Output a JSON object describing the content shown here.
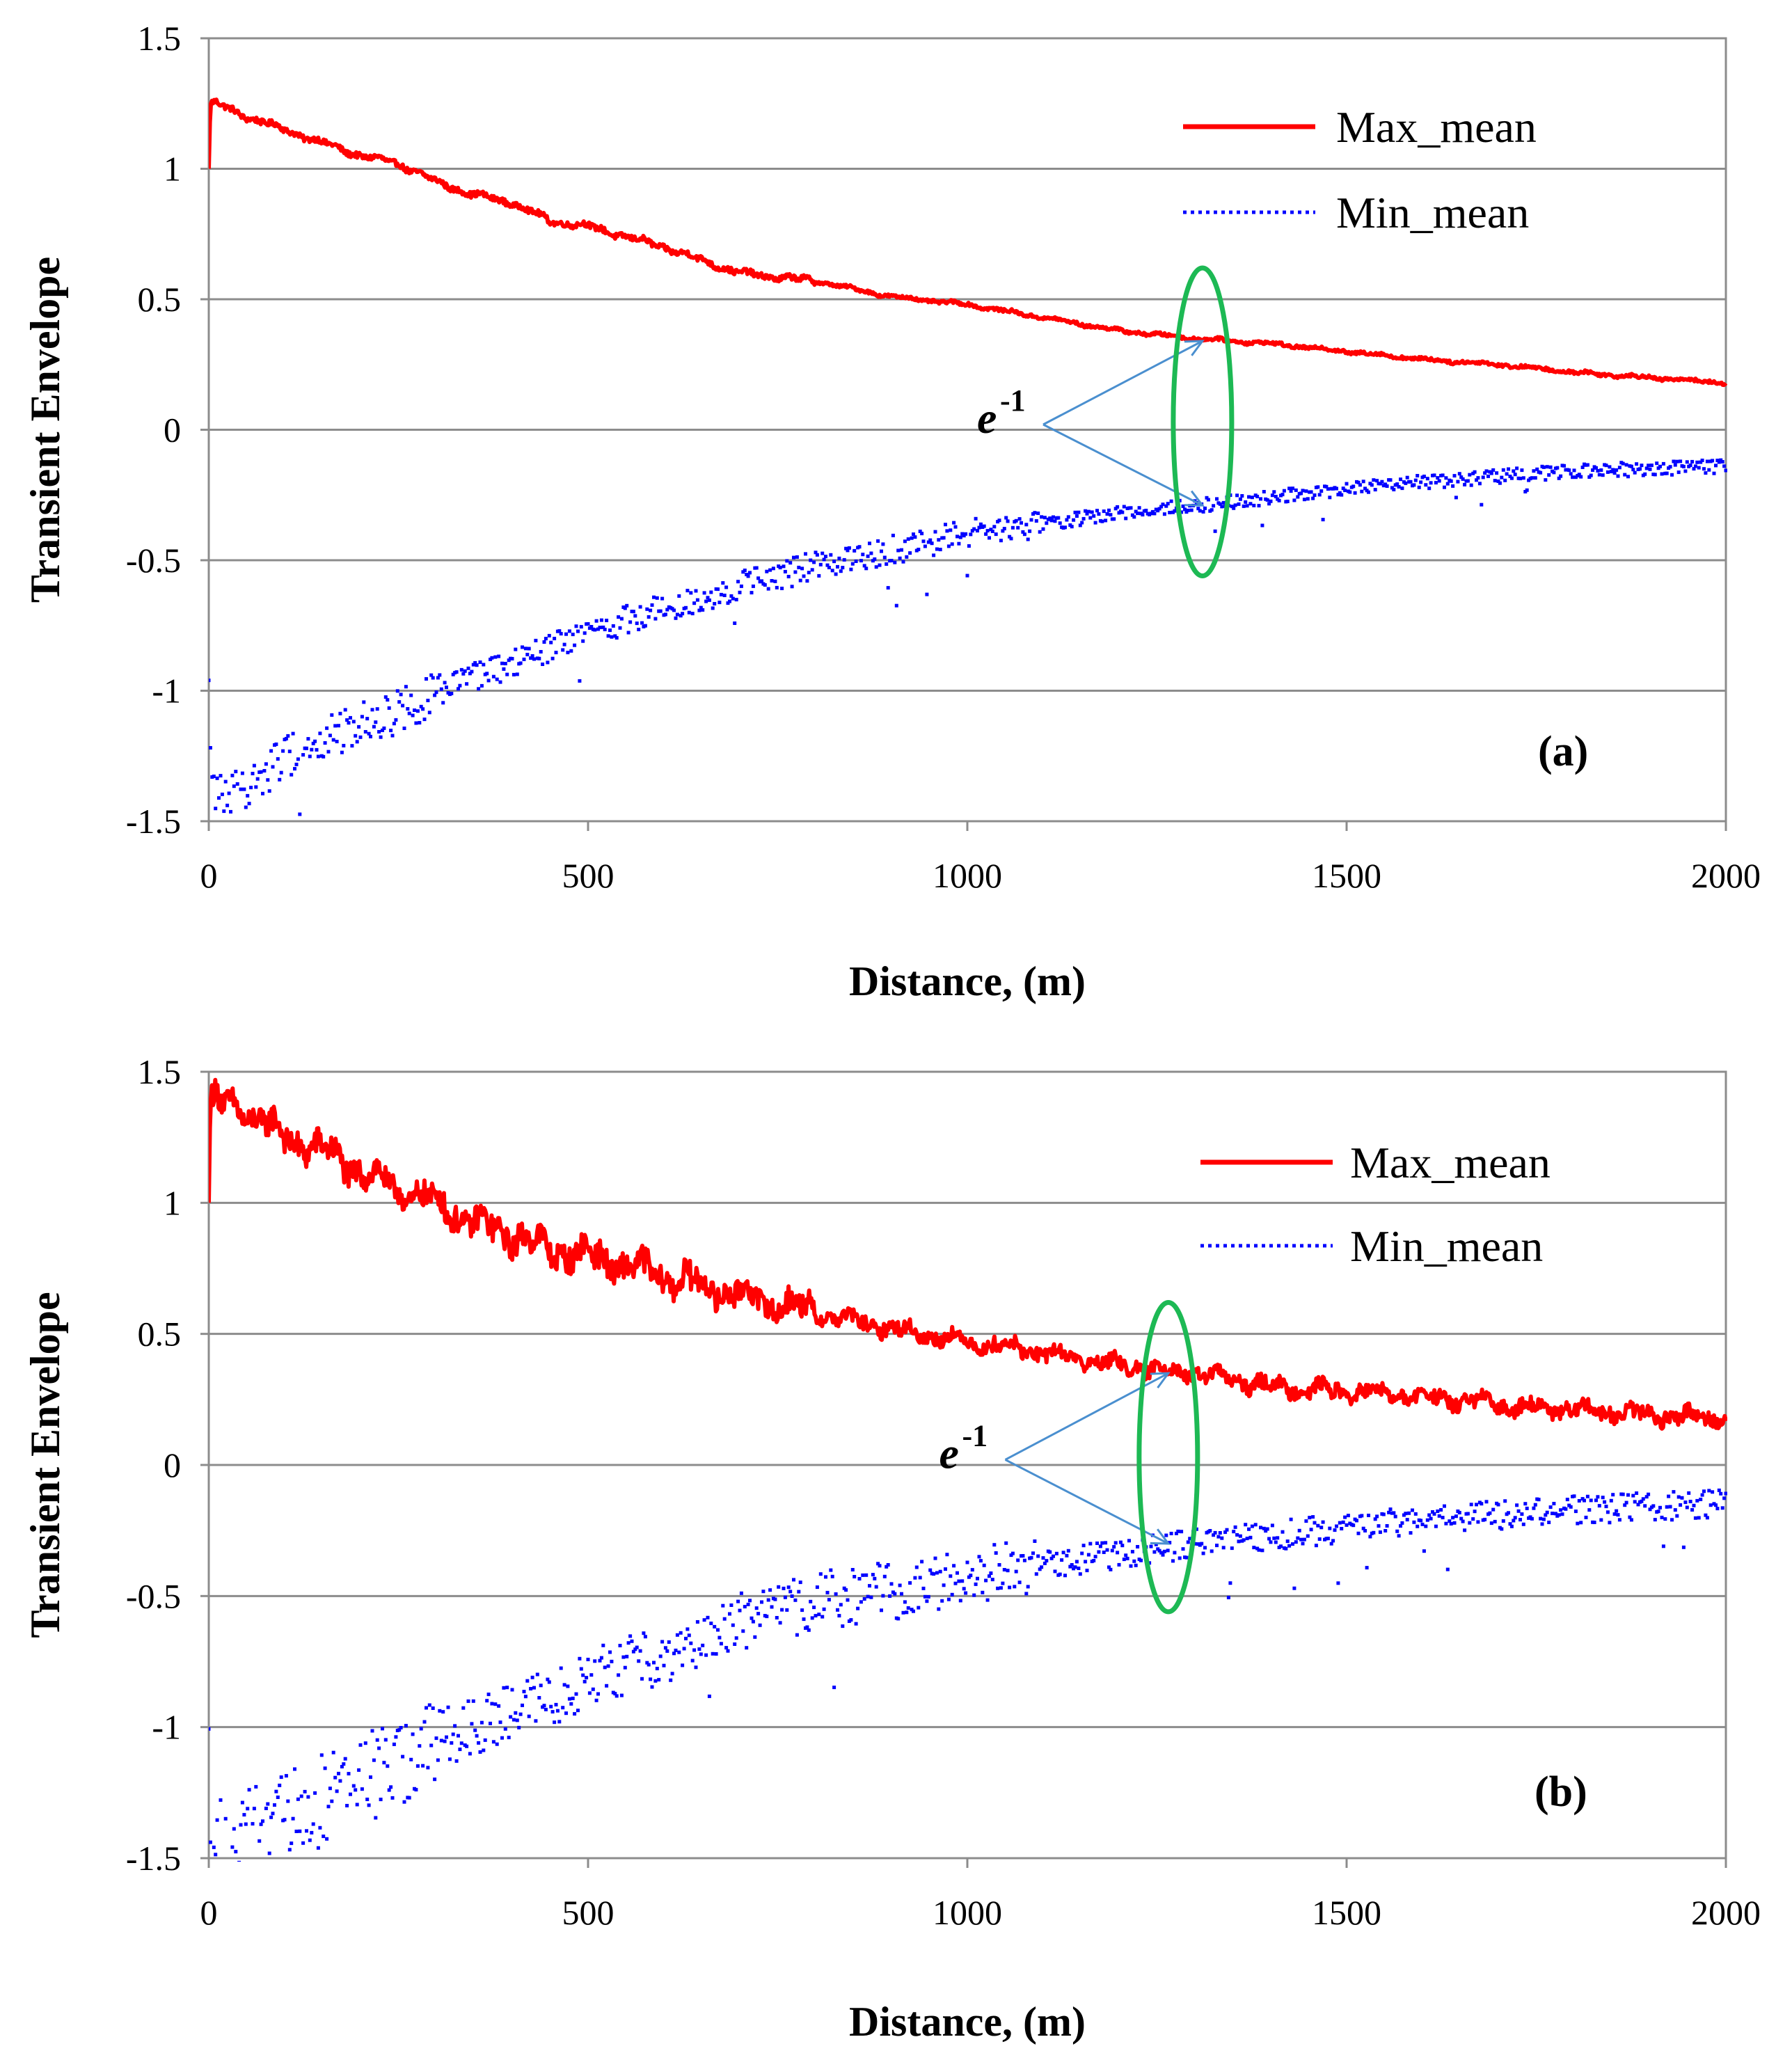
{
  "chart_data": [
    {
      "type": "line",
      "panel_label": "(a)",
      "xlabel": "Distance, (m)",
      "ylabel": "Transient  Envelope",
      "xlim": [
        0,
        2000
      ],
      "ylim": [
        -1.5,
        1.5
      ],
      "xticks": [
        "0",
        "500",
        "1000",
        "1500",
        "2000"
      ],
      "yticks": [
        "1.5",
        "1",
        "0.5",
        "0",
        "-0.5",
        "-1",
        "-1.5"
      ],
      "grid": "horizontal",
      "legend_position": "top-right",
      "annotation": {
        "base": "e",
        "sup": "-1",
        "point": [
          1100,
          0.02
        ],
        "targets": [
          [
            1310,
            0.34
          ],
          [
            1310,
            -0.29
          ]
        ],
        "ellipse_center": [
          1310,
          0.03
        ],
        "ellipse_radius": [
          42,
          0.59
        ]
      },
      "series": [
        {
          "name": "Max_mean",
          "style": "solid",
          "color": "#ff0000",
          "x": [
            0,
            2,
            10,
            50,
            100,
            150,
            200,
            250,
            300,
            350,
            400,
            450,
            500,
            600,
            700,
            800,
            900,
            1000,
            1100,
            1200,
            1300,
            1400,
            1500,
            1600,
            1700,
            1800,
            1900,
            2000
          ],
          "y": [
            1.0,
            1.25,
            1.25,
            1.2,
            1.15,
            1.1,
            1.05,
            1.02,
            0.95,
            0.9,
            0.87,
            0.8,
            0.78,
            0.7,
            0.6,
            0.57,
            0.51,
            0.48,
            0.43,
            0.38,
            0.35,
            0.33,
            0.3,
            0.27,
            0.25,
            0.22,
            0.2,
            0.18
          ],
          "noise": 0.015
        },
        {
          "name": "Min_mean",
          "style": "dotted",
          "color": "#0000ff",
          "x": [
            0,
            2,
            10,
            30,
            60,
            100,
            150,
            200,
            250,
            300,
            400,
            500,
            600,
            700,
            800,
            900,
            1000,
            1100,
            1200,
            1300,
            1400,
            1500,
            1600,
            1700,
            1800,
            1900,
            2000
          ],
          "y": [
            -1.0,
            -1.3,
            -1.38,
            -1.4,
            -1.35,
            -1.25,
            -1.2,
            -1.12,
            -1.08,
            -1.0,
            -0.9,
            -0.78,
            -0.68,
            -0.6,
            -0.52,
            -0.46,
            -0.4,
            -0.36,
            -0.32,
            -0.29,
            -0.26,
            -0.23,
            -0.2,
            -0.18,
            -0.16,
            -0.15,
            -0.14
          ],
          "noise": 0.04
        }
      ]
    },
    {
      "type": "line",
      "panel_label": "(b)",
      "xlabel": "Distance, (m)",
      "ylabel": "Transient  Envelope",
      "xlim": [
        0,
        2000
      ],
      "ylim": [
        -1.5,
        1.5
      ],
      "xticks": [
        "0",
        "500",
        "1000",
        "1500",
        "2000"
      ],
      "yticks": [
        "1.5",
        "1",
        "0.5",
        "0",
        "-0.5",
        "-1",
        "-1.5"
      ],
      "grid": "horizontal",
      "legend_position": "top-right",
      "annotation": {
        "base": "e",
        "sup": "-1",
        "point": [
          1050,
          0.02
        ],
        "targets": [
          [
            1265,
            0.35
          ],
          [
            1265,
            -0.3
          ]
        ],
        "ellipse_center": [
          1265,
          0.03
        ],
        "ellipse_radius": [
          42,
          0.59
        ]
      },
      "series": [
        {
          "name": "Max_mean",
          "style": "solid",
          "color": "#ff0000",
          "x": [
            0,
            2,
            10,
            50,
            100,
            150,
            200,
            250,
            300,
            350,
            400,
            450,
            500,
            600,
            700,
            800,
            900,
            1000,
            1100,
            1200,
            1300,
            1400,
            1500,
            1600,
            1700,
            1800,
            1900,
            2000
          ],
          "y": [
            1.0,
            1.4,
            1.38,
            1.35,
            1.25,
            1.2,
            1.12,
            1.05,
            1.0,
            0.92,
            0.88,
            0.82,
            0.8,
            0.72,
            0.65,
            0.58,
            0.52,
            0.47,
            0.43,
            0.38,
            0.35,
            0.3,
            0.28,
            0.26,
            0.23,
            0.21,
            0.19,
            0.18
          ],
          "noise": 0.05
        },
        {
          "name": "Min_mean",
          "style": "dotted",
          "color": "#0000ff",
          "x": [
            0,
            2,
            10,
            30,
            60,
            100,
            150,
            200,
            250,
            300,
            400,
            500,
            600,
            700,
            800,
            900,
            1000,
            1100,
            1200,
            1300,
            1400,
            1500,
            1600,
            1700,
            1800,
            1900,
            2000
          ],
          "y": [
            -1.1,
            -1.4,
            -1.45,
            -1.45,
            -1.4,
            -1.35,
            -1.28,
            -1.2,
            -1.15,
            -1.05,
            -0.95,
            -0.82,
            -0.72,
            -0.6,
            -0.52,
            -0.48,
            -0.42,
            -0.38,
            -0.34,
            -0.3,
            -0.27,
            -0.24,
            -0.21,
            -0.19,
            -0.17,
            -0.16,
            -0.15
          ],
          "noise": 0.08
        }
      ]
    }
  ]
}
